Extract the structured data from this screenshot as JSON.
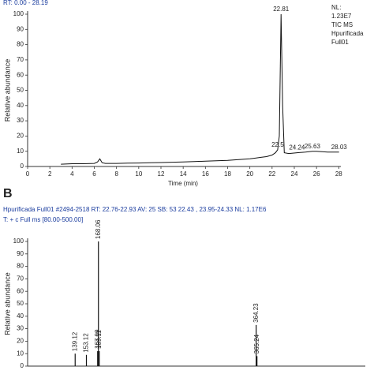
{
  "chart_data": [
    {
      "type": "line",
      "title": "RT: 0.00 - 28.19",
      "xlabel": "Time (min)",
      "ylabel": "Relative abundance",
      "annotations": [
        "NL:",
        "1.23E7",
        "TIC  MS",
        "Hpurificada",
        "Full01"
      ],
      "color": "#111111",
      "x": [
        3,
        4,
        5,
        6,
        6.3,
        6.5,
        6.7,
        7,
        8,
        9,
        10,
        11,
        12,
        13,
        14,
        15,
        16,
        17,
        18,
        19,
        20,
        20.5,
        21,
        21.5,
        22,
        22.3,
        22.5,
        22.65,
        22.81,
        22.95,
        23.1,
        23.5,
        24.24,
        25,
        25.63,
        26,
        27,
        28.03
      ],
      "values": [
        1.5,
        1.8,
        1.8,
        2,
        3,
        5,
        2.5,
        2,
        2,
        2.2,
        2.3,
        2.5,
        2.6,
        2.8,
        3,
        3.2,
        3.5,
        3.8,
        4,
        4.5,
        5,
        5.5,
        6,
        6.5,
        7.5,
        9,
        11,
        20,
        100,
        40,
        9,
        8.5,
        9,
        9.5,
        10,
        10,
        9.5,
        9.5
      ],
      "peaks": {
        "x": [
          22.5,
          22.81,
          24.24,
          25.63,
          28.03
        ],
        "values": [
          11,
          100,
          9,
          10,
          9.5
        ]
      },
      "xlim": [
        0,
        28.19
      ],
      "xticks": [
        0,
        2,
        4,
        6,
        8,
        10,
        12,
        14,
        16,
        18,
        20,
        22,
        24,
        26,
        28
      ],
      "ylim": [
        0,
        100
      ],
      "yticks": [
        0,
        10,
        20,
        30,
        40,
        50,
        60,
        70,
        80,
        90,
        100
      ]
    },
    {
      "type": "bar",
      "panel_label": "B",
      "title": "Hpurificada Full01 #2494-2518   RT: 22.76-22.93   AV: 25   SB: 53  22.43 , 23.95-24.33   NL: 1.17E6",
      "subtitle": "T: + c Full ms [80.00-500.00]",
      "ylabel": "Relative abundance",
      "color": "#111111",
      "x": [
        139.12,
        153.12,
        167.09,
        168.06,
        169.11,
        364.23,
        365.24
      ],
      "values": [
        10,
        9,
        12,
        100,
        12,
        33,
        8
      ],
      "xlim": [
        80,
        500
      ],
      "ylim": [
        0,
        100
      ],
      "yticks": [
        0,
        10,
        20,
        30,
        40,
        50,
        60,
        70,
        80,
        90,
        100
      ]
    }
  ]
}
